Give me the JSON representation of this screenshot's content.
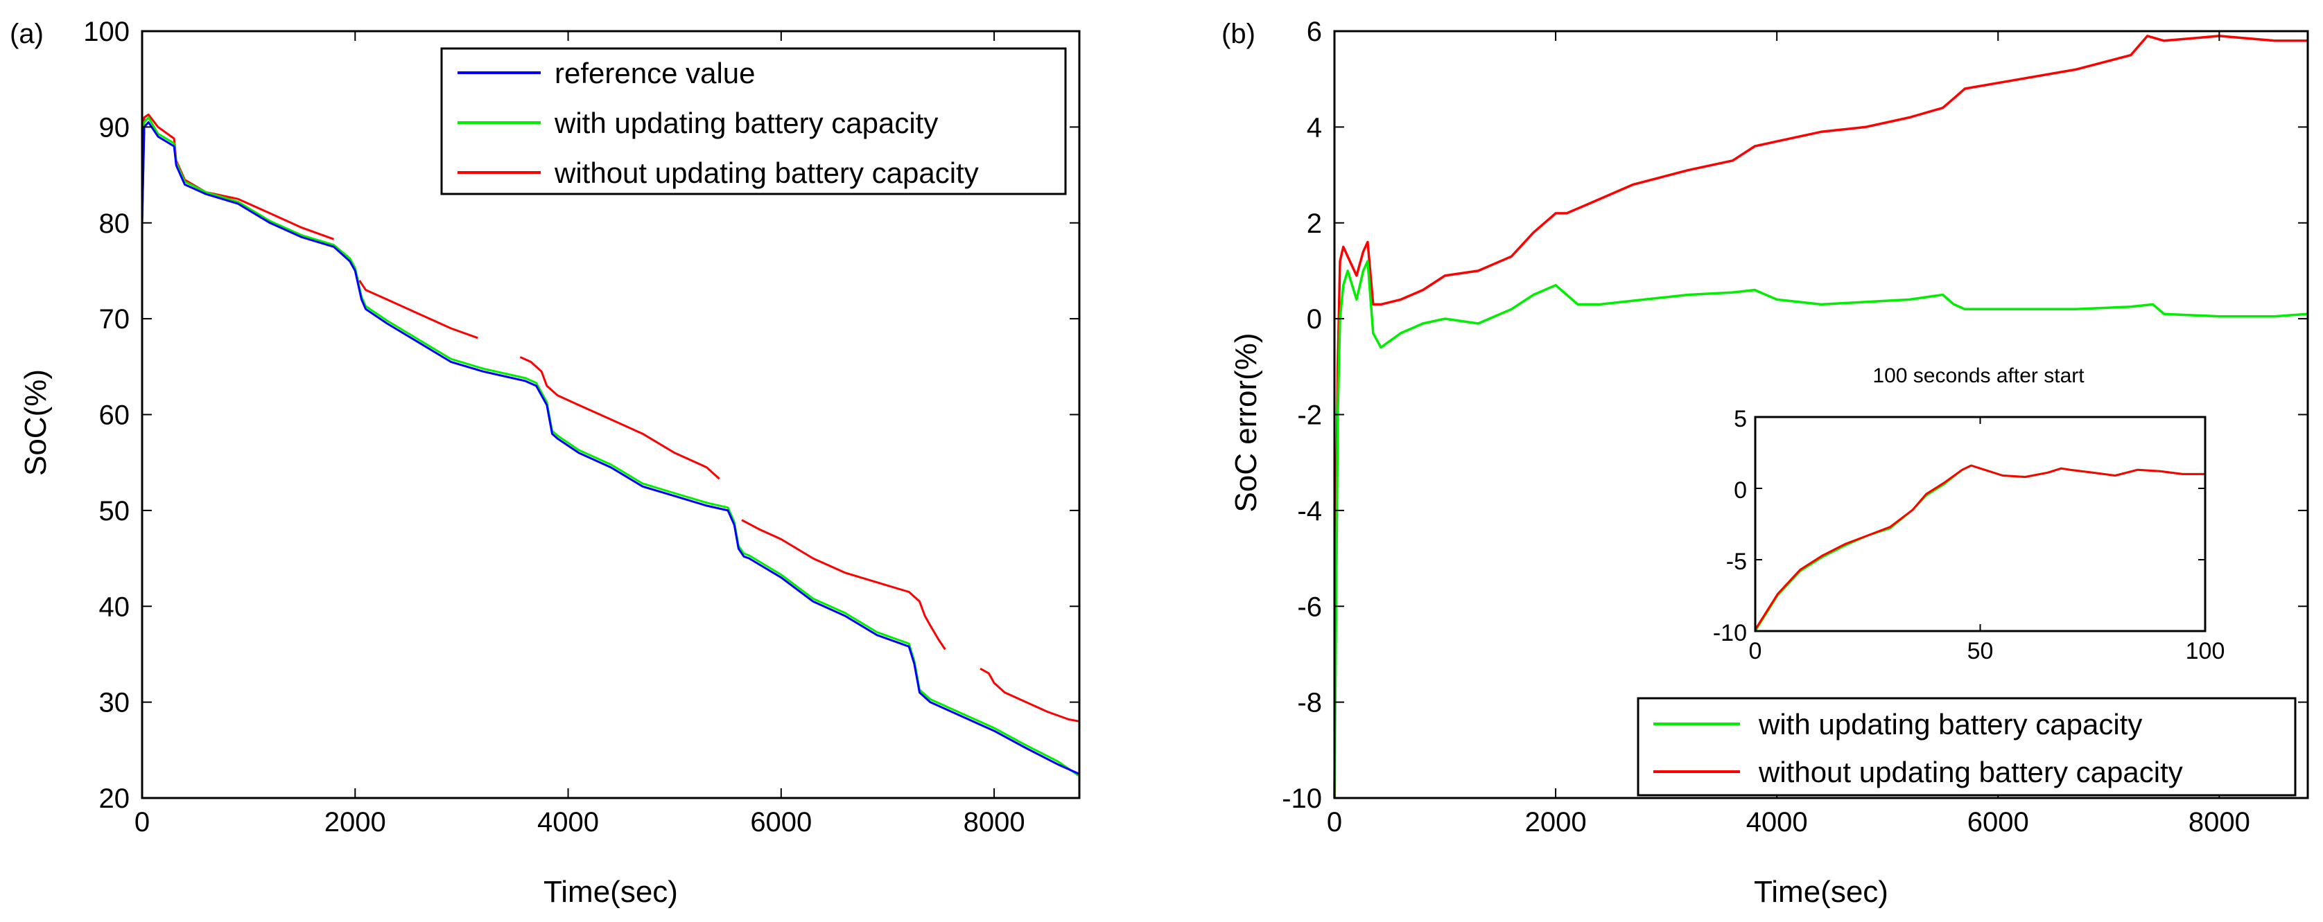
{
  "colors": {
    "reference": "#0000ff",
    "with": "#00ee00",
    "without": "#ff0000",
    "axis": "#000000"
  },
  "chart_data": [
    {
      "type": "line",
      "panel_label": "(a)",
      "xlabel": "Time(sec)",
      "ylabel": "SoC(%)",
      "xlim": [
        0,
        8800
      ],
      "ylim": [
        20,
        100
      ],
      "xticks": [
        0,
        2000,
        4000,
        6000,
        8000
      ],
      "yticks": [
        20,
        30,
        40,
        50,
        60,
        70,
        80,
        90,
        100
      ],
      "legend": "top-right",
      "series": [
        {
          "name": "reference value",
          "color_key": "reference",
          "x": [
            0,
            20,
            60,
            150,
            300,
            320,
            400,
            600,
            900,
            1200,
            1500,
            1800,
            1950,
            2000,
            2060,
            2100,
            2300,
            2600,
            2900,
            3200,
            3400,
            3600,
            3700,
            3800,
            3850,
            3900,
            4100,
            4400,
            4700,
            5000,
            5300,
            5500,
            5560,
            5600,
            5650,
            5700,
            6000,
            6300,
            6600,
            6900,
            7100,
            7200,
            7250,
            7300,
            7400,
            7700,
            8000,
            8300,
            8600,
            8800
          ],
          "y": [
            80,
            90,
            90.5,
            89,
            88,
            86,
            84,
            83,
            82,
            80,
            78.5,
            77.5,
            76,
            75,
            72,
            71,
            69.5,
            67.5,
            65.5,
            64.5,
            64,
            63.5,
            63,
            61,
            58,
            57.5,
            56,
            54.5,
            52.5,
            51.5,
            50.5,
            50,
            48.5,
            46,
            45.2,
            45,
            43,
            40.5,
            39,
            37,
            36.2,
            35.8,
            34,
            31,
            30,
            28.5,
            27,
            25.2,
            23.5,
            22.5
          ]
        },
        {
          "name": "with updating battery capacity",
          "color_key": "with",
          "x": [
            0,
            20,
            60,
            150,
            300,
            320,
            400,
            600,
            900,
            1200,
            1500,
            1800,
            1950,
            2000,
            2060,
            2100,
            2300,
            2600,
            2900,
            3200,
            3400,
            3600,
            3700,
            3800,
            3850,
            3900,
            4100,
            4400,
            4700,
            5000,
            5300,
            5500,
            5560,
            5600,
            5650,
            5700,
            6000,
            6300,
            6600,
            6900,
            7100,
            7200,
            7250,
            7300,
            7400,
            7700,
            8000,
            8300,
            8600,
            8800
          ],
          "y": [
            80,
            90.5,
            91,
            89.3,
            88.3,
            86.3,
            84.3,
            83.2,
            82.2,
            80.2,
            78.7,
            77.7,
            76.3,
            75.3,
            72.3,
            71.3,
            69.8,
            67.8,
            65.8,
            64.8,
            64.3,
            63.8,
            63.3,
            61.3,
            58.3,
            57.8,
            56.3,
            54.8,
            52.8,
            51.8,
            50.8,
            50.3,
            48.8,
            46.3,
            45.5,
            45.3,
            43.3,
            40.8,
            39.3,
            37.3,
            36.5,
            36.1,
            34.3,
            31.3,
            30.3,
            28.8,
            27.3,
            25.5,
            23.8,
            22.3
          ]
        },
        {
          "name": "without updating battery capacity",
          "color_key": "without",
          "segments": [
            {
              "x": [
                0,
                20,
                60,
                150,
                300,
                320,
                400,
                600,
                900,
                1200,
                1500,
                1800
              ],
              "y": [
                80,
                91,
                91.3,
                90,
                88.8,
                86.5,
                84.5,
                83.2,
                82.5,
                81,
                79.5,
                78.3
              ]
            },
            {
              "x": [
                2040,
                2100,
                2300,
                2600,
                2900,
                3150
              ],
              "y": [
                74,
                73,
                72,
                70.5,
                69,
                68
              ]
            },
            {
              "x": [
                3550,
                3650,
                3750,
                3800,
                3900,
                4100,
                4400,
                4700,
                5000,
                5300,
                5420
              ],
              "y": [
                66,
                65.5,
                64.5,
                63,
                62,
                61,
                59.5,
                58,
                56,
                54.5,
                53.3
              ]
            },
            {
              "x": [
                5630,
                5800,
                6000,
                6300,
                6600,
                6900,
                7200,
                7300,
                7350,
                7400,
                7480,
                7540
              ],
              "y": [
                49,
                48,
                47,
                45,
                43.5,
                42.5,
                41.5,
                40.5,
                39,
                38,
                36.5,
                35.5
              ]
            },
            {
              "x": [
                7870,
                7950,
                8000,
                8100,
                8300,
                8500,
                8700,
                8800
              ],
              "y": [
                33.5,
                33,
                32,
                31,
                30,
                29,
                28.2,
                28
              ]
            }
          ]
        }
      ]
    },
    {
      "type": "line",
      "panel_label": "(b)",
      "xlabel": "Time(sec)",
      "ylabel": "SoC error(%)",
      "xlim": [
        0,
        8800
      ],
      "ylim": [
        -10,
        6
      ],
      "xticks": [
        0,
        2000,
        4000,
        6000,
        8000
      ],
      "yticks": [
        -10,
        -8,
        -6,
        -4,
        -2,
        0,
        2,
        4,
        6
      ],
      "legend": "bottom-right",
      "series": [
        {
          "name": "with updating battery capacity",
          "color_key": "with",
          "x": [
            0,
            15,
            30,
            50,
            80,
            120,
            200,
            260,
            300,
            350,
            420,
            600,
            800,
            1000,
            1300,
            1600,
            1800,
            2000,
            2100,
            2200,
            2400,
            2800,
            3200,
            3600,
            3800,
            4000,
            4400,
            4800,
            5200,
            5500,
            5600,
            5700,
            6200,
            6700,
            7200,
            7400,
            7500,
            8000,
            8500,
            8800
          ],
          "y": [
            -10,
            -6,
            -2,
            0,
            0.7,
            1,
            0.4,
            1,
            1.2,
            -0.3,
            -0.6,
            -0.3,
            -0.1,
            0,
            -0.1,
            0.2,
            0.5,
            0.7,
            0.5,
            0.3,
            0.3,
            0.4,
            0.5,
            0.55,
            0.6,
            0.4,
            0.3,
            0.35,
            0.4,
            0.5,
            0.3,
            0.2,
            0.2,
            0.2,
            0.25,
            0.3,
            0.1,
            0.05,
            0.05,
            0.1
          ]
        },
        {
          "name": "without updating battery capacity",
          "color_key": "without",
          "x": [
            0,
            15,
            30,
            50,
            80,
            120,
            200,
            260,
            300,
            350,
            420,
            600,
            800,
            1000,
            1300,
            1600,
            1800,
            2000,
            2100,
            2300,
            2700,
            3200,
            3600,
            3800,
            4000,
            4400,
            4800,
            5200,
            5500,
            5600,
            5700,
            6200,
            6700,
            7200,
            7350,
            7500,
            8000,
            8500,
            8800
          ],
          "y": [
            -10,
            -4,
            -1,
            1.2,
            1.5,
            1.3,
            0.9,
            1.4,
            1.6,
            0.3,
            0.3,
            0.4,
            0.6,
            0.9,
            1,
            1.3,
            1.8,
            2.2,
            2.2,
            2.4,
            2.8,
            3.1,
            3.3,
            3.6,
            3.7,
            3.9,
            4.0,
            4.2,
            4.4,
            4.6,
            4.8,
            5,
            5.2,
            5.5,
            5.9,
            5.8,
            5.9,
            5.8,
            5.8
          ]
        }
      ],
      "inset": {
        "title": "100 seconds after start",
        "xlim": [
          0,
          100
        ],
        "ylim": [
          -10,
          5
        ],
        "xticks": [
          0,
          50,
          100
        ],
        "yticks": [
          -10,
          -5,
          0,
          5
        ],
        "series": [
          {
            "name": "with updating battery capacity",
            "color_key": "with",
            "x": [
              0,
              5,
              10,
              15,
              20,
              25,
              30,
              35,
              38,
              42,
              46,
              48,
              50,
              55,
              60,
              65,
              68,
              70,
              75,
              80,
              85,
              90,
              95,
              100
            ],
            "y": [
              -10,
              -7.5,
              -5.8,
              -4.8,
              -4,
              -3.3,
              -2.8,
              -1.5,
              -0.5,
              0.3,
              1.3,
              1.6,
              1.4,
              0.9,
              0.8,
              1.1,
              1.4,
              1.3,
              1.1,
              0.9,
              1.3,
              1.2,
              1.0,
              1.0
            ]
          },
          {
            "name": "without updating battery capacity",
            "color_key": "without",
            "x": [
              0,
              5,
              10,
              15,
              20,
              25,
              30,
              35,
              38,
              42,
              46,
              48,
              50,
              55,
              60,
              65,
              68,
              70,
              75,
              80,
              85,
              90,
              95,
              100
            ],
            "y": [
              -9.9,
              -7.4,
              -5.7,
              -4.7,
              -3.9,
              -3.3,
              -2.7,
              -1.5,
              -0.4,
              0.4,
              1.3,
              1.6,
              1.4,
              0.9,
              0.8,
              1.1,
              1.4,
              1.3,
              1.1,
              0.9,
              1.3,
              1.2,
              1.0,
              1.0
            ]
          }
        ]
      }
    }
  ]
}
